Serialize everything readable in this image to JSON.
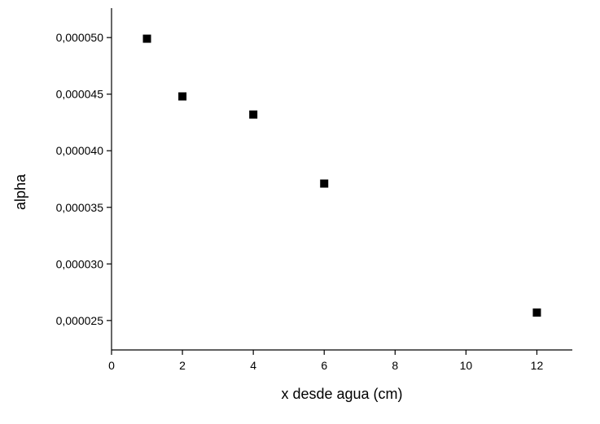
{
  "chart_data": {
    "type": "scatter",
    "x_label": "x desde agua (cm)",
    "y_label": "alpha",
    "series": [
      {
        "color": "#000000",
        "x": [
          1,
          2,
          4,
          6,
          12
        ],
        "values": [
          4.99e-05,
          4.48e-05,
          4.32e-05,
          3.71e-05,
          2.57e-05
        ]
      }
    ],
    "xlim": [
      0,
      13
    ],
    "xticks": [
      0,
      2,
      4,
      6,
      8,
      10,
      12
    ],
    "ylim": [
      2.24e-05,
      5.26e-05
    ],
    "yticks": [
      {
        "value": 2.5e-05,
        "label": "0,000025"
      },
      {
        "value": 3e-05,
        "label": "0,000030"
      },
      {
        "value": 3.5e-05,
        "label": "0,000035"
      },
      {
        "value": 4e-05,
        "label": "0,000040"
      },
      {
        "value": 4.5e-05,
        "label": "0,000045"
      },
      {
        "value": 5e-05,
        "label": "0,000050"
      }
    ],
    "grid": false
  }
}
